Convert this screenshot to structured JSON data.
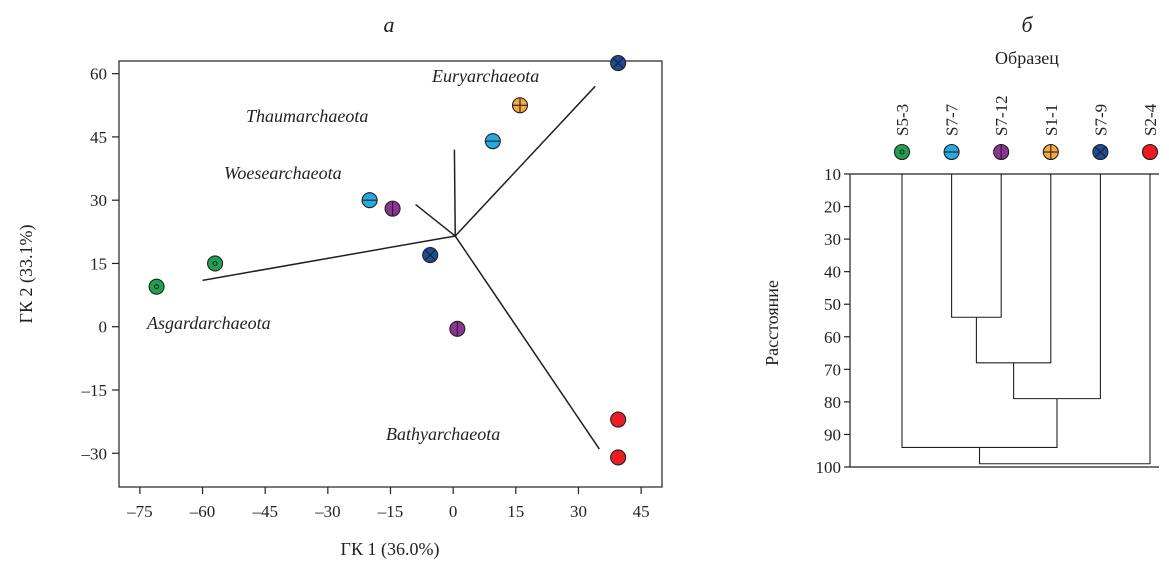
{
  "chart_data": [
    {
      "type": "scatter",
      "panel": "а",
      "xlabel": "ГК 1 (36.0%)",
      "ylabel": "ГК 2 (33.1%)",
      "xlim": [
        -80,
        50
      ],
      "ylim": [
        -38,
        63
      ],
      "xticks": [
        -75,
        -60,
        -45,
        -30,
        -15,
        0,
        15,
        30,
        45
      ],
      "yticks": [
        -30,
        -15,
        0,
        15,
        30,
        45,
        60
      ],
      "xtick_labels": [
        "–75",
        "–60",
        "–45",
        "–30",
        "–15",
        "0",
        "15",
        "30",
        "45"
      ],
      "ytick_labels": [
        "–30",
        "–15",
        "0",
        "15",
        "30",
        "45",
        "60"
      ],
      "grid": false,
      "origin": [
        0.5,
        21.5
      ],
      "vectors": [
        {
          "name": "Euryarchaeota",
          "end": [
            34,
            57
          ]
        },
        {
          "name": "Thaumarchaeota",
          "end": [
            0.3,
            42
          ]
        },
        {
          "name": "Woesearchaeota",
          "end": [
            -9,
            29
          ]
        },
        {
          "name": "Asgardarchaeota",
          "end": [
            -60,
            11
          ]
        },
        {
          "name": "Bathyarchaeota",
          "end": [
            35,
            -29
          ]
        }
      ],
      "points": [
        {
          "sample": "S5-3",
          "x": -71,
          "y": 9.5
        },
        {
          "sample": "S5-3",
          "x": -57,
          "y": 15
        },
        {
          "sample": "S7-7",
          "x": -20,
          "y": 30
        },
        {
          "sample": "S7-7",
          "x": 9.5,
          "y": 44
        },
        {
          "sample": "S7-12",
          "x": -14.5,
          "y": 28
        },
        {
          "sample": "S7-12",
          "x": 1,
          "y": -0.5
        },
        {
          "sample": "S1-1",
          "x": 16,
          "y": 52.5
        },
        {
          "sample": "S7-9",
          "x": -5.5,
          "y": 17
        },
        {
          "sample": "S7-9",
          "x": 39.5,
          "y": 62.5
        },
        {
          "sample": "S2-4",
          "x": 39.5,
          "y": -22
        },
        {
          "sample": "S2-4",
          "x": 39.5,
          "y": -31
        }
      ]
    },
    {
      "type": "dendrogram",
      "panel": "б",
      "title": "Образец",
      "ylabel": "Расстояние",
      "ylim": [
        10,
        100
      ],
      "yticks": [
        10,
        20,
        30,
        40,
        50,
        60,
        70,
        80,
        90,
        100
      ],
      "leaves": [
        "S5-3",
        "S7-7",
        "S7-12",
        "S1-1",
        "S7-9",
        "S2-4"
      ],
      "merges": [
        {
          "left": "S7-7",
          "right": "S7-12",
          "height": 54
        },
        {
          "left": "S7-7+S7-12",
          "right": "S1-1",
          "height": 68
        },
        {
          "left": "S7-7+S7-12+S1-1",
          "right": "S7-9",
          "height": 79
        },
        {
          "left": "S5-3",
          "right": "S7-7+S7-12+S1-1+S7-9",
          "height": 94
        },
        {
          "left": "S5-3+S7-7+S7-12+S1-1+S7-9",
          "right": "S2-4",
          "height": 99
        }
      ]
    }
  ],
  "samples": {
    "S5-3": {
      "color": "#1fa050",
      "marker": "dot-icon"
    },
    "S7-7": {
      "color": "#26a9e0",
      "marker": "horizontal-bar-icon"
    },
    "S7-12": {
      "color": "#8a3594",
      "marker": "vertical-bar-icon"
    },
    "S1-1": {
      "color": "#f7a941",
      "marker": "plus-icon"
    },
    "S7-9": {
      "color": "#1b4d9b",
      "marker": "cross-icon"
    },
    "S2-4": {
      "color": "#ec1c24",
      "marker": "filled-circle-icon"
    }
  }
}
